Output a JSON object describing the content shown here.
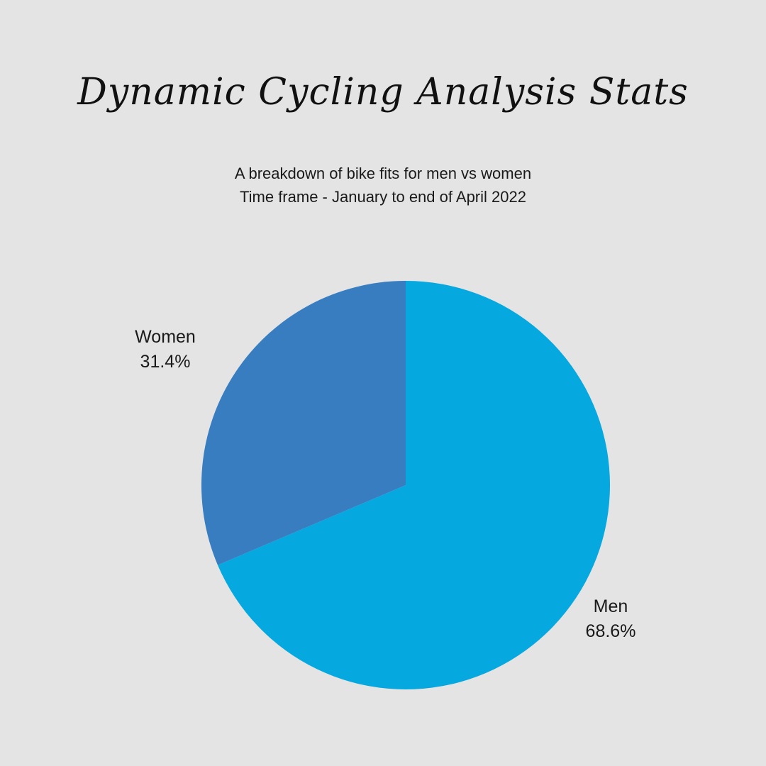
{
  "page": {
    "background_color": "#e4e4e4"
  },
  "chart_data": {
    "type": "pie",
    "title": "Dynamic Cycling Analysis Stats",
    "subtitle": [
      "A breakdown of bike fits for men vs women",
      "Time frame - January to end of April 2022"
    ],
    "slices": [
      {
        "label": "Men",
        "value": 68.6,
        "value_label": "68.6%",
        "color": "#05a8df"
      },
      {
        "label": "Women",
        "value": 31.4,
        "value_label": "31.4%",
        "color": "#377dc0"
      }
    ],
    "start": "12 o'clock",
    "direction": "clockwise"
  }
}
